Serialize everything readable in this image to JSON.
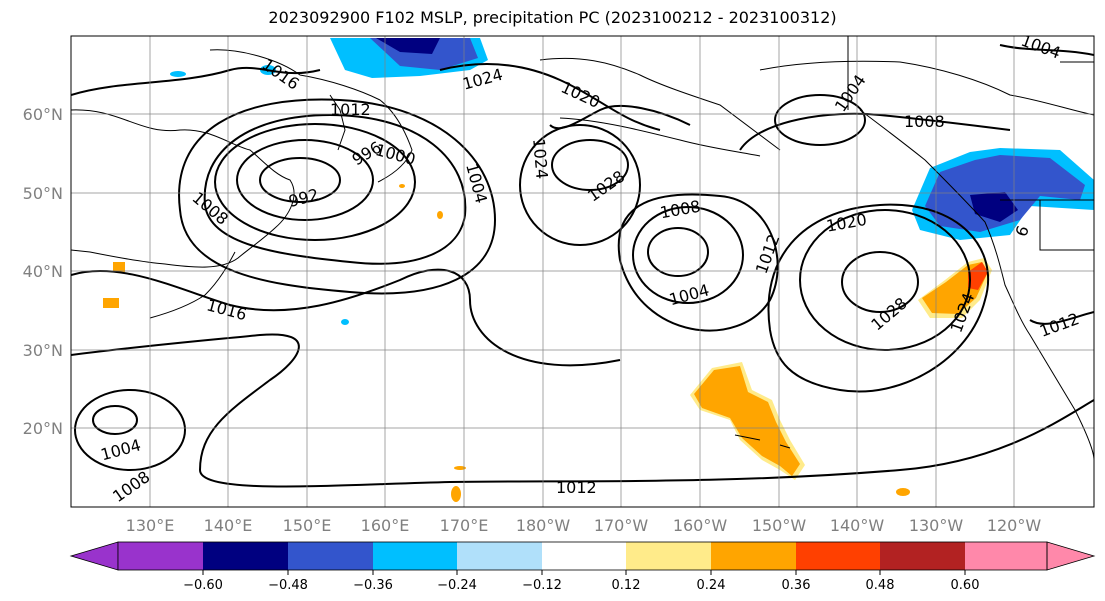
{
  "title": "2023092900 F102 MSLP, precipitation PC (2023100212 - 2023100312)",
  "lat_labels": [
    "60°N",
    "50°N",
    "40°N",
    "30°N",
    "20°N"
  ],
  "lon_labels": [
    "130°E",
    "140°E",
    "150°E",
    "160°E",
    "170°E",
    "180°W",
    "170°W",
    "160°W",
    "150°W",
    "140°W",
    "130°W",
    "120°W"
  ],
  "isobar_labels": [
    "1004",
    "1016",
    "1024",
    "1012",
    "1020",
    "1004",
    "1008",
    "1028",
    "992",
    "996",
    "1000",
    "1024",
    "1004",
    "1008",
    "1008",
    "1004",
    "1012",
    "1020",
    "1028",
    "1024",
    "1016",
    "1012",
    "1004",
    "1008",
    "1012",
    "6"
  ],
  "colorbar": {
    "ticks": [
      "−0.60",
      "−0.48",
      "−0.36",
      "−0.24",
      "−0.12",
      "0.12",
      "0.24",
      "0.36",
      "0.48",
      "0.60"
    ],
    "colors": [
      "#9933cc",
      "#000080",
      "#3355cc",
      "#00bfff",
      "#b0e0fa",
      "#ffffff",
      "#ffeb8a",
      "#ffa500",
      "#ff4000",
      "#b22222",
      "#ff88aa"
    ]
  }
}
